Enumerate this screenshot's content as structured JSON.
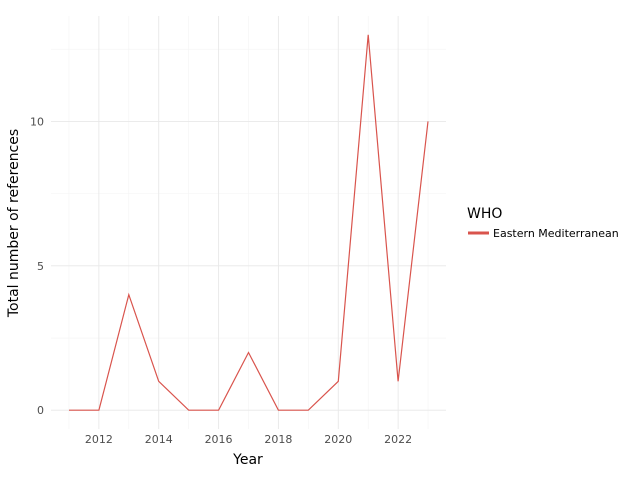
{
  "chart_data": {
    "type": "line",
    "title": "",
    "xlabel": "Year",
    "ylabel": "Total number of references",
    "x": [
      2011,
      2012,
      2013,
      2014,
      2015,
      2016,
      2017,
      2018,
      2019,
      2020,
      2021,
      2022,
      2023
    ],
    "series": [
      {
        "name": "Eastern Mediterranean",
        "color": "#d9544d",
        "values": [
          0,
          0,
          4,
          1,
          0,
          0,
          2,
          0,
          0,
          1,
          13,
          1,
          10
        ]
      }
    ],
    "xticks": [
      2012,
      2014,
      2016,
      2018,
      2020,
      2022
    ],
    "xtick_labels": [
      "2012",
      "2014",
      "2016",
      "2018",
      "2020",
      "2022"
    ],
    "yticks": [
      0,
      5,
      10
    ],
    "ytick_labels": [
      "0",
      "5",
      "10"
    ],
    "xlim": [
      2010.4,
      2023.6
    ],
    "ylim": [
      -0.65,
      13.65
    ],
    "grid": true,
    "legend": {
      "title": "WHO",
      "placement": "right"
    }
  }
}
